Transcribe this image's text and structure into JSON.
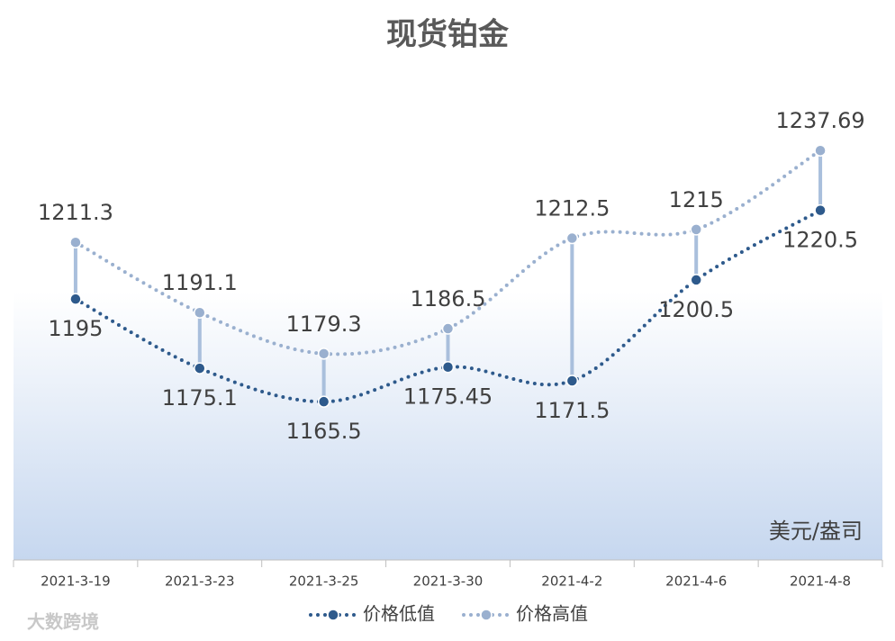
{
  "chart_data": {
    "type": "line",
    "title": "现货铂金",
    "unit_label": "美元/盎司",
    "watermark": "大数跨境",
    "categories": [
      "2021-3-19",
      "2021-3-23",
      "2021-3-25",
      "2021-3-30",
      "2021-4-2",
      "2021-4-6",
      "2021-4-8"
    ],
    "series": [
      {
        "name": "价格低值",
        "color": "#2e5a8c",
        "values": [
          1195,
          1175.1,
          1165.5,
          1175.45,
          1171.5,
          1200.5,
          1220.5
        ]
      },
      {
        "name": "价格高值",
        "color": "#9ab0cf",
        "values": [
          1211.3,
          1191.1,
          1179.3,
          1186.5,
          1212.5,
          1215,
          1237.69
        ]
      }
    ],
    "ylim": [
      1120,
      1260
    ],
    "high_low_lines": true,
    "smooth": true,
    "legend": "bottom"
  }
}
